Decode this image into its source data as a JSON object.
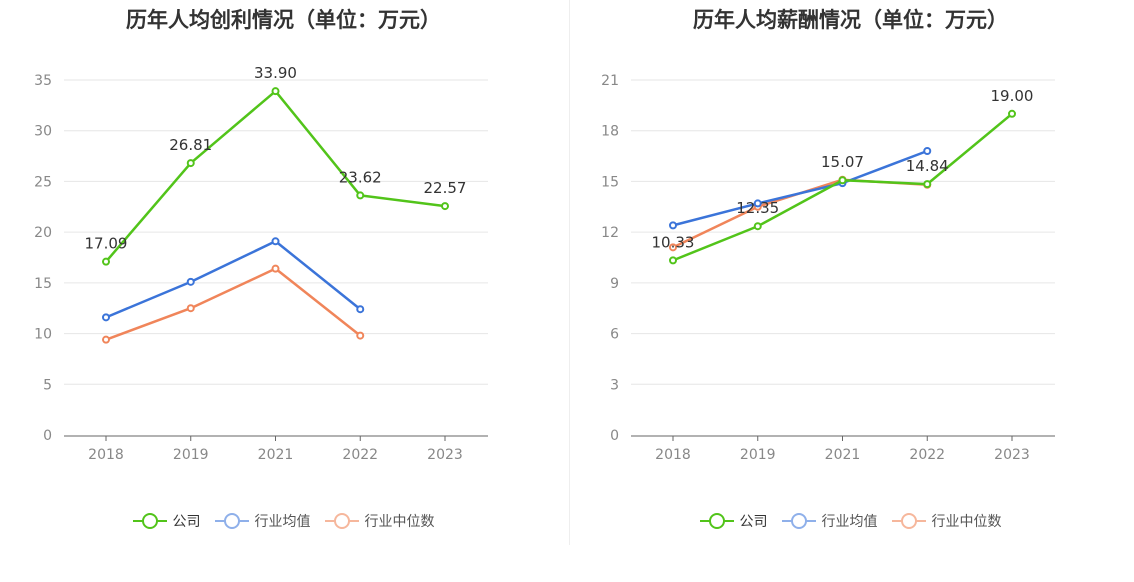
{
  "charts": [
    {
      "title": "历年人均创利情况（单位：万元）",
      "legend": [
        {
          "label": "公司",
          "color": "#52c41a"
        },
        {
          "label": "行业均值",
          "color": "#3b74d9"
        },
        {
          "label": "行业中位数",
          "color": "#f0855a"
        }
      ]
    },
    {
      "title": "历年人均薪酬情况（单位：万元）",
      "legend": [
        {
          "label": "公司",
          "color": "#52c41a"
        },
        {
          "label": "行业均值",
          "color": "#3b74d9"
        },
        {
          "label": "行业中位数",
          "color": "#f0855a"
        }
      ]
    }
  ],
  "chart_data": [
    {
      "type": "line",
      "title": "历年人均创利情况（单位：万元）",
      "categories": [
        "2018",
        "2019",
        "2021",
        "2022",
        "2023"
      ],
      "ylim": [
        0,
        35
      ],
      "yticks": [
        0,
        5,
        10,
        15,
        20,
        25,
        30,
        35
      ],
      "grid": true,
      "legend_position": "bottom",
      "series": [
        {
          "name": "公司",
          "color": "#52c41a",
          "values": [
            17.09,
            26.81,
            33.9,
            23.62,
            22.57
          ],
          "labels": [
            "17.09",
            "26.81",
            "33.90",
            "23.62",
            "22.57"
          ]
        },
        {
          "name": "行业均值",
          "color": "#3b74d9",
          "values": [
            11.6,
            15.1,
            19.1,
            12.4,
            null
          ]
        },
        {
          "name": "行业中位数",
          "color": "#f0855a",
          "values": [
            9.4,
            12.5,
            16.4,
            9.8,
            null
          ]
        }
      ]
    },
    {
      "type": "line",
      "title": "历年人均薪酬情况（单位：万元）",
      "categories": [
        "2018",
        "2019",
        "2021",
        "2022",
        "2023"
      ],
      "ylim": [
        0,
        21
      ],
      "yticks": [
        0,
        3,
        6,
        9,
        12,
        15,
        18,
        21
      ],
      "grid": true,
      "legend_position": "bottom",
      "series": [
        {
          "name": "公司",
          "color": "#52c41a",
          "values": [
            10.33,
            12.35,
            15.07,
            14.84,
            19.0
          ],
          "labels": [
            "10.33",
            "12.35",
            "15.07",
            "14.84",
            "19.00"
          ]
        },
        {
          "name": "行业均值",
          "color": "#3b74d9",
          "values": [
            12.4,
            13.7,
            14.9,
            16.8,
            null
          ]
        },
        {
          "name": "行业中位数",
          "color": "#f0855a",
          "values": [
            11.1,
            13.5,
            15.1,
            14.8,
            null
          ]
        }
      ]
    }
  ]
}
